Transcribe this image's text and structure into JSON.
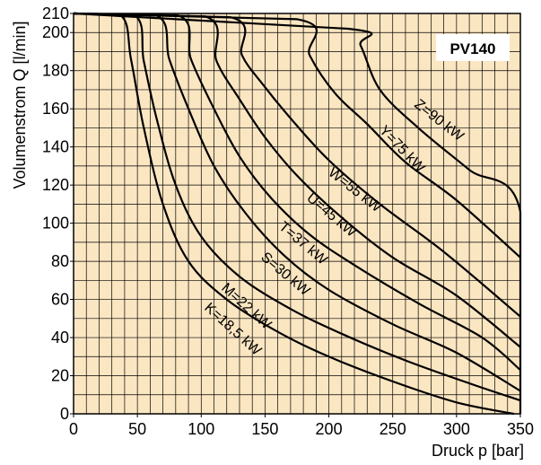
{
  "chart_data": {
    "type": "line",
    "title": "PV140",
    "xlabel": "Druck p [bar]",
    "ylabel": "Volumenstrom Q [l/min]",
    "xlim": [
      0,
      350
    ],
    "ylim": [
      0,
      210
    ],
    "x_ticks": [
      0,
      50,
      100,
      150,
      200,
      250,
      300,
      350
    ],
    "y_ticks": [
      0,
      20,
      40,
      60,
      80,
      100,
      120,
      140,
      160,
      180,
      200,
      210
    ],
    "grid": true,
    "background": "#fbe6c2",
    "line_color": "#000000",
    "series": [
      {
        "name": "K=18,5 kW",
        "points": [
          [
            0,
            210
          ],
          [
            37,
            209
          ],
          [
            45,
            186
          ],
          [
            55,
            150
          ],
          [
            70,
            110
          ],
          [
            90,
            80
          ],
          [
            120,
            60
          ],
          [
            160,
            43
          ],
          [
            200,
            30
          ],
          [
            250,
            17
          ],
          [
            300,
            6
          ],
          [
            345,
            0
          ]
        ]
      },
      {
        "name": "M=22 kW",
        "points": [
          [
            0,
            210
          ],
          [
            48,
            209
          ],
          [
            55,
            185
          ],
          [
            65,
            155
          ],
          [
            80,
            120
          ],
          [
            100,
            93
          ],
          [
            130,
            72
          ],
          [
            170,
            55
          ],
          [
            210,
            42
          ],
          [
            260,
            28
          ],
          [
            310,
            16
          ],
          [
            350,
            7
          ]
        ]
      },
      {
        "name": "S=30 kW",
        "points": [
          [
            0,
            210
          ],
          [
            65,
            209
          ],
          [
            75,
            186
          ],
          [
            90,
            160
          ],
          [
            110,
            130
          ],
          [
            135,
            105
          ],
          [
            165,
            83
          ],
          [
            200,
            65
          ],
          [
            250,
            47
          ],
          [
            300,
            32
          ],
          [
            350,
            12
          ]
        ]
      },
      {
        "name": "T=37 kW",
        "points": [
          [
            0,
            210
          ],
          [
            82,
            209
          ],
          [
            92,
            186
          ],
          [
            110,
            160
          ],
          [
            130,
            135
          ],
          [
            155,
            113
          ],
          [
            185,
            94
          ],
          [
            220,
            78
          ],
          [
            270,
            58
          ],
          [
            320,
            40
          ],
          [
            350,
            23
          ]
        ]
      },
      {
        "name": "U=45 kW",
        "points": [
          [
            0,
            210
          ],
          [
            103,
            208.5
          ],
          [
            112,
            185
          ],
          [
            130,
            165
          ],
          [
            150,
            145
          ],
          [
            175,
            125
          ],
          [
            210,
            103
          ],
          [
            250,
            82
          ],
          [
            300,
            62
          ],
          [
            350,
            35
          ]
        ]
      },
      {
        "name": "W=55 kW",
        "points": [
          [
            0,
            210
          ],
          [
            123,
            208
          ],
          [
            132,
            188
          ],
          [
            148,
            173
          ],
          [
            170,
            155
          ],
          [
            200,
            133
          ],
          [
            240,
            110
          ],
          [
            290,
            85
          ],
          [
            350,
            51
          ]
        ]
      },
      {
        "name": "Y=75 kW",
        "points": [
          [
            0,
            210
          ],
          [
            175,
            207
          ],
          [
            185,
            188
          ],
          [
            205,
            168
          ],
          [
            230,
            152
          ],
          [
            260,
            132
          ],
          [
            300,
            112
          ],
          [
            350,
            82
          ]
        ]
      },
      {
        "name": "Z=90 kW",
        "points": [
          [
            0,
            210
          ],
          [
            215,
            202
          ],
          [
            225,
            193
          ],
          [
            240,
            170
          ],
          [
            270,
            150
          ],
          [
            310,
            128
          ],
          [
            350,
            106
          ],
          [
            350,
            0
          ]
        ]
      }
    ]
  }
}
